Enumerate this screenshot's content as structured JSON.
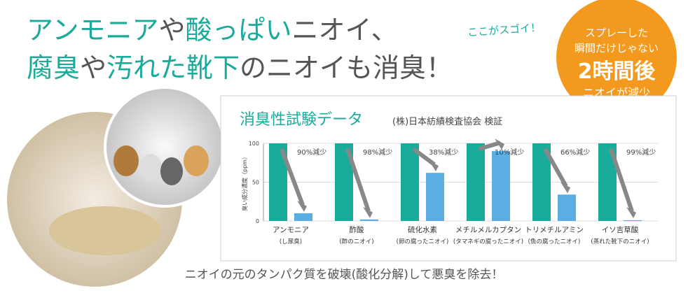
{
  "headline": {
    "line1": [
      "アンモニア",
      "や",
      "酸っぱい",
      "ニオイ、"
    ],
    "line2": [
      "腐臭",
      "や",
      "汚れた靴下",
      "のニオイも消臭！"
    ]
  },
  "callout": "ここがスゴイ！",
  "badge": {
    "line1": "スプレーした",
    "line2": "瞬間だけじゃない",
    "big": "2時間後",
    "line3": "ニオイが減少"
  },
  "footer": "ニオイの元のタンパク質を破壊(酸化分解)して悪臭を除去！",
  "chart_data": {
    "type": "bar",
    "title": "消臭性試験データ",
    "subtitle": "(株)日本紡績検査協会 検証",
    "y_label": "臭い成分濃度（ppm）",
    "categories": [
      "アンモニア",
      "酢酸",
      "硫化水素",
      "メチルメルカプタン",
      "トリメチルアミン",
      "イソ吉草酸"
    ],
    "subcategories": [
      "(し尿臭)",
      "(酢のニオイ)",
      "(卵の腐ったニオイ)",
      "(タマネギの腐ったニオイ)",
      "(魚の腐ったニオイ)",
      "(蒸れた靴下のニオイ)"
    ],
    "series": [
      {
        "color": "#1aab9b",
        "values": [
          100,
          100,
          100,
          100,
          100,
          100
        ]
      },
      {
        "color": "#5aaee3",
        "values": [
          10,
          2,
          62,
          90,
          34,
          1
        ]
      }
    ],
    "annotations": [
      "90%減少",
      "98%減少",
      "38%減少",
      "10%減少",
      "66%減少",
      "99%減少"
    ],
    "ylim": [
      0,
      100
    ],
    "yticks": [
      0,
      50,
      100
    ],
    "grid": true
  }
}
